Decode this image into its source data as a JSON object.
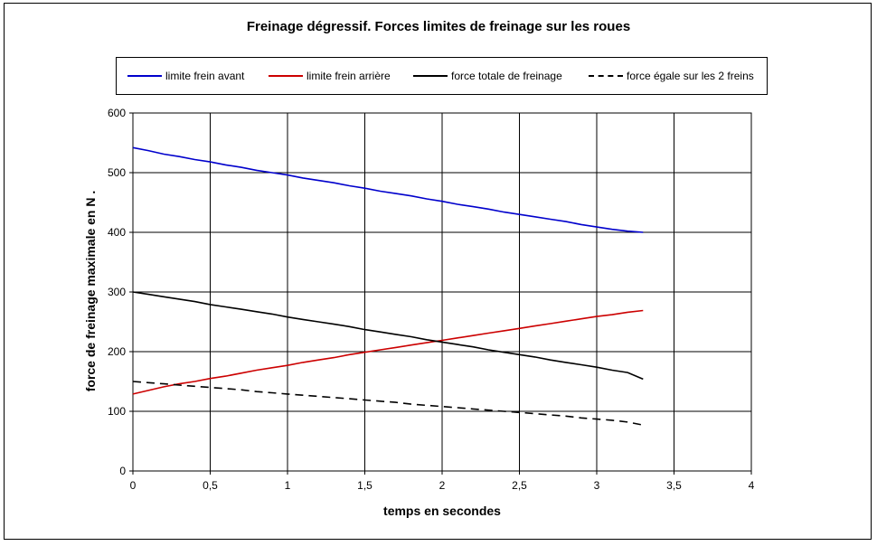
{
  "chart_data": {
    "type": "line",
    "title": "Freinage dégressif. Forces limites de freinage sur les roues",
    "xlabel": "temps en secondes",
    "ylabel": "force de freinage maximale en N   .",
    "xlim": [
      0,
      4
    ],
    "ylim": [
      0,
      600
    ],
    "xticks": [
      "0",
      "0,5",
      "1",
      "1,5",
      "2",
      "2,5",
      "3",
      "3,5",
      "4"
    ],
    "yticks": [
      "0",
      "100",
      "200",
      "300",
      "400",
      "500",
      "600"
    ],
    "grid": true,
    "legend_position": "top",
    "x": [
      0,
      0.1,
      0.2,
      0.3,
      0.4,
      0.5,
      0.6,
      0.7,
      0.8,
      0.9,
      1.0,
      1.1,
      1.2,
      1.3,
      1.4,
      1.5,
      1.6,
      1.7,
      1.8,
      1.9,
      2.0,
      2.1,
      2.2,
      2.3,
      2.4,
      2.5,
      2.6,
      2.7,
      2.8,
      2.9,
      3.0,
      3.1,
      3.2,
      3.3
    ],
    "series": [
      {
        "name": "limite frein avant",
        "color": "#0000cc",
        "dash": "solid",
        "values": [
          542,
          537,
          531,
          527,
          522,
          518,
          513,
          509,
          504,
          500,
          496,
          491,
          487,
          483,
          478,
          474,
          469,
          465,
          461,
          456,
          452,
          447,
          443,
          439,
          434,
          430,
          426,
          422,
          418,
          413,
          409,
          405,
          402,
          400
        ]
      },
      {
        "name": "limite frein arrière",
        "color": "#cc0000",
        "dash": "solid",
        "values": [
          129,
          135,
          141,
          146,
          150,
          155,
          159,
          164,
          169,
          173,
          177,
          182,
          186,
          190,
          195,
          199,
          203,
          207,
          211,
          215,
          219,
          223,
          227,
          231,
          235,
          239,
          243,
          247,
          251,
          255,
          259,
          262,
          266,
          269
        ]
      },
      {
        "name": "force totale de freinage",
        "color": "#000000",
        "dash": "solid",
        "values": [
          300,
          296,
          292,
          288,
          284,
          279,
          275,
          271,
          267,
          263,
          258,
          254,
          250,
          246,
          242,
          237,
          233,
          229,
          225,
          220,
          216,
          212,
          208,
          203,
          199,
          195,
          191,
          186,
          182,
          178,
          174,
          169,
          165,
          154
        ]
      },
      {
        "name": "force égale sur les 2 freins",
        "color": "#000000",
        "dash": "dashed",
        "values": [
          150,
          148,
          146,
          144,
          142,
          140,
          138,
          136,
          133,
          131,
          129,
          127,
          125,
          123,
          121,
          119,
          117,
          115,
          112,
          110,
          108,
          106,
          104,
          102,
          100,
          98,
          96,
          94,
          92,
          89,
          87,
          85,
          82,
          77
        ]
      }
    ]
  }
}
